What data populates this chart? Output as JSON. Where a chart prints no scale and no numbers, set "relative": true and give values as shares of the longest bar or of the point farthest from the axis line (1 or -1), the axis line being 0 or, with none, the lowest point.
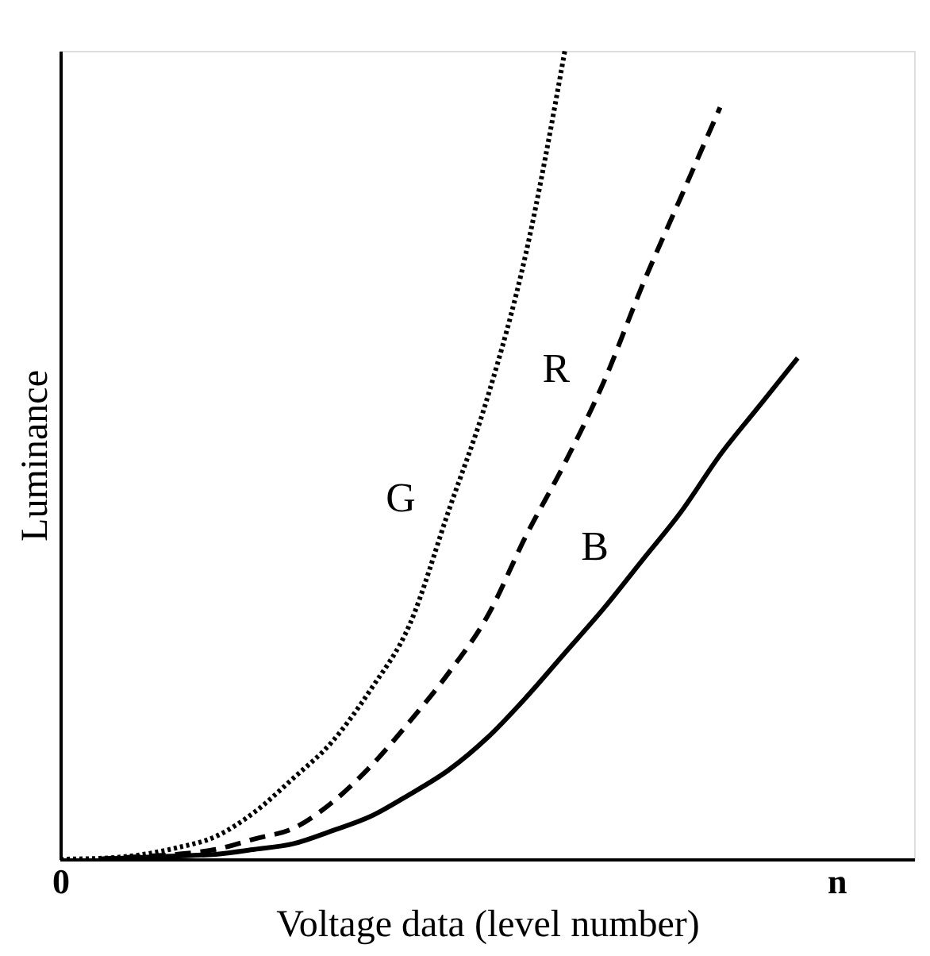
{
  "chart_data": {
    "type": "line",
    "relative": true,
    "xlabel": "Voltage data (level number)",
    "ylabel": "Luminance",
    "grid": false,
    "marker": "none",
    "categories": [
      "0",
      null,
      null,
      null,
      null,
      null,
      null,
      null,
      null,
      null,
      null,
      null,
      null,
      null,
      null,
      null,
      null,
      null,
      null,
      null,
      "n",
      null,
      null
    ],
    "series": [
      {
        "name": "G",
        "color": "#000000",
        "line_style": "dotted",
        "values": [
          0,
          0.001,
          0.005,
          0.014,
          0.028,
          0.058,
          0.1,
          0.145,
          0.21,
          0.29,
          0.43,
          0.57,
          0.75,
          1,
          null,
          null,
          null,
          null,
          null,
          null,
          null,
          null,
          null
        ]
      },
      {
        "name": "R",
        "color": "#000000",
        "line_style": "dashed",
        "values": [
          null,
          0,
          0.003,
          0.006,
          0.012,
          0.025,
          0.038,
          0.07,
          0.115,
          0.17,
          0.23,
          0.3,
          0.4,
          0.49,
          0.59,
          0.71,
          0.82,
          0.93,
          null,
          null,
          null,
          null,
          null
        ]
      },
      {
        "name": "B",
        "color": "#000000",
        "line_style": "solid",
        "values": [
          null,
          0,
          0.002,
          0.004,
          0.006,
          0.012,
          0.019,
          0.035,
          0.053,
          0.08,
          0.11,
          0.15,
          0.2,
          0.255,
          0.31,
          0.37,
          0.43,
          0.5,
          0.56,
          0.62,
          null,
          null,
          null
        ]
      }
    ]
  }
}
